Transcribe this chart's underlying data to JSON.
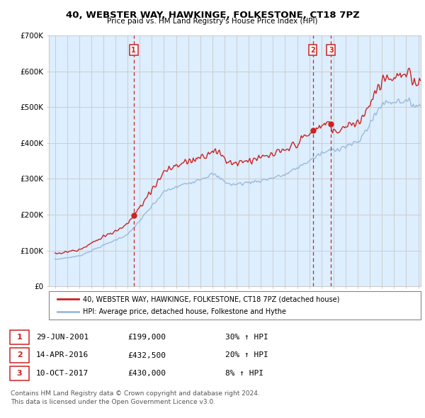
{
  "title": "40, WEBSTER WAY, HAWKINGE, FOLKESTONE, CT18 7PZ",
  "subtitle": "Price paid vs. HM Land Registry's House Price Index (HPI)",
  "legend_line1": "40, WEBSTER WAY, HAWKINGE, FOLKESTONE, CT18 7PZ (detached house)",
  "legend_line2": "HPI: Average price, detached house, Folkestone and Hythe",
  "sale_labels": [
    "1",
    "2",
    "3"
  ],
  "sale_dates": [
    "29-JUN-2001",
    "14-APR-2016",
    "10-OCT-2017"
  ],
  "sale_prices": [
    "£199,000",
    "£432,500",
    "£430,000"
  ],
  "sale_hpi": [
    "30% ↑ HPI",
    "20% ↑ HPI",
    "8% ↑ HPI"
  ],
  "sale_years": [
    2001.5,
    2016.29,
    2017.79
  ],
  "sale_price_values": [
    199000,
    432500,
    430000
  ],
  "footnote1": "Contains HM Land Registry data © Crown copyright and database right 2024.",
  "footnote2": "This data is licensed under the Open Government Licence v3.0.",
  "ylim": [
    0,
    700000
  ],
  "xlim_start": 1994.5,
  "xlim_end": 2025.2,
  "red_color": "#cc2222",
  "blue_color": "#99bbdd",
  "vline_color": "#cc2222",
  "grid_color": "#cccccc",
  "bg_color": "#ffffff",
  "plot_bg_color": "#ddeeff"
}
